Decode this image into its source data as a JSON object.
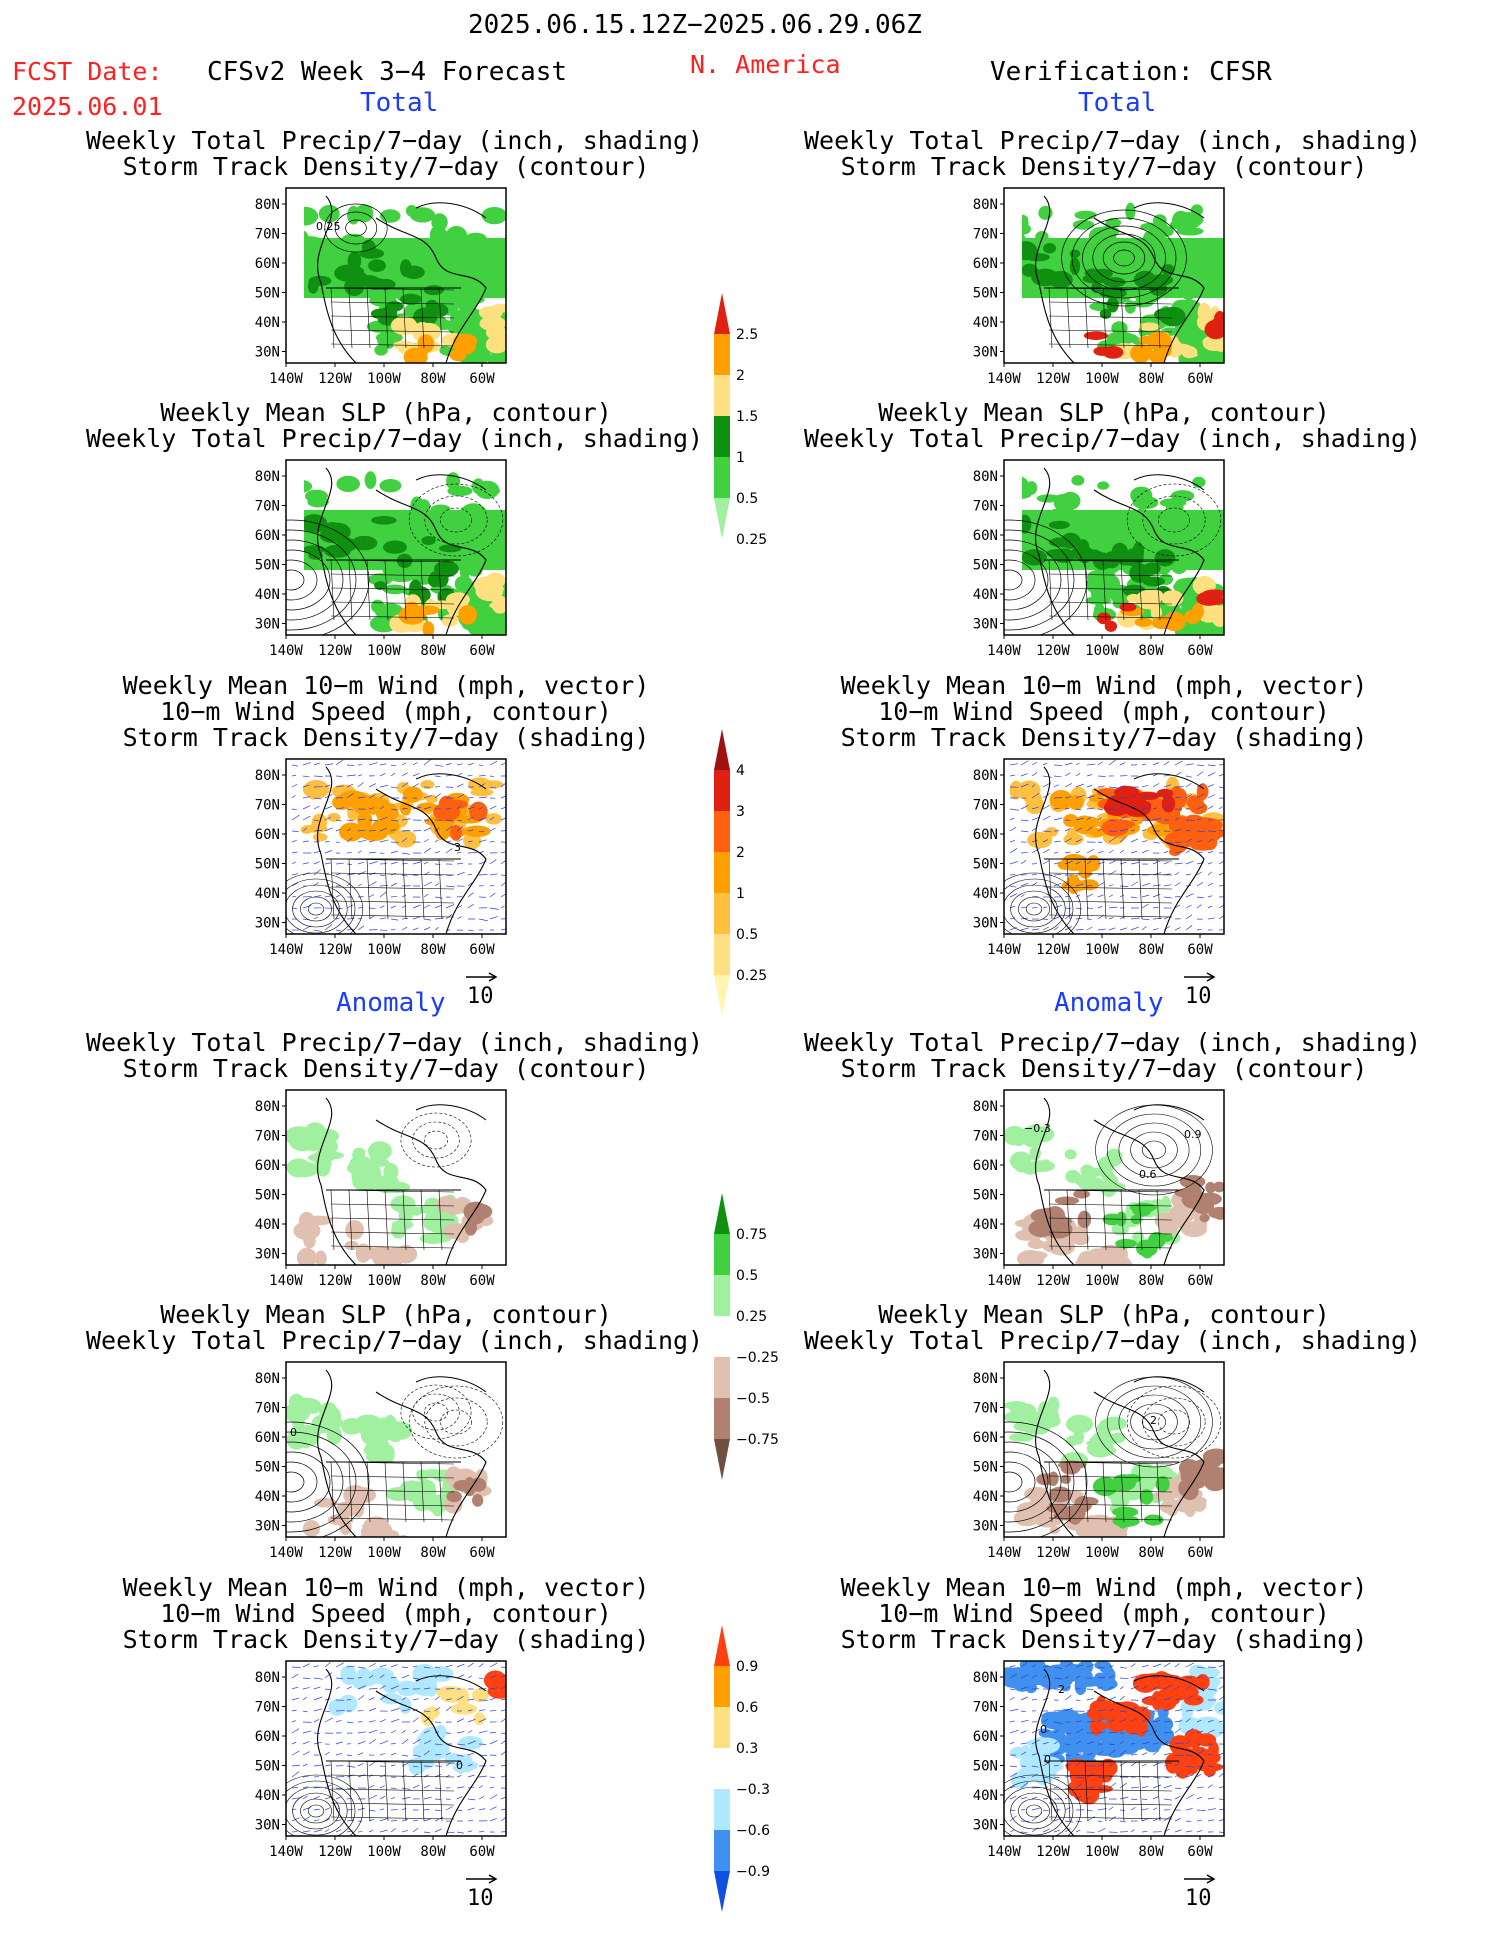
{
  "header": {
    "date_range": "2025.06.15.12Z−2025.06.29.06Z",
    "fcst_label": "FCST Date:",
    "fcst_date": "2025.06.01",
    "model": "CFSv2 Week 3−4 Forecast",
    "region": "N. America",
    "verification": "Verification: CFSR"
  },
  "sections": {
    "total": "Total",
    "anomaly": "Anomaly"
  },
  "panel_titles": {
    "p1": [
      "Weekly Total Precip/7−day (inch, shading)",
      "Storm Track Density/7−day (contour)"
    ],
    "p2": [
      "Weekly Mean SLP (hPa, contour)",
      "Weekly Total Precip/7−day (inch, shading)"
    ],
    "p3": [
      "Weekly Mean 10−m Wind (mph, vector)",
      "10−m Wind Speed (mph, contour)",
      "Storm Track Density/7−day (shading)"
    ]
  },
  "axes": {
    "lat_ticks": [
      "80N",
      "70N",
      "60N",
      "50N",
      "40N",
      "30N"
    ],
    "lon_ticks": [
      "140W",
      "120W",
      "100W",
      "80W",
      "60W"
    ]
  },
  "vector_key": "10",
  "contour_labels": {
    "total_fcst_storm": "0.25",
    "anom_fcst_slp": "0",
    "anom_obs_storm_a": "−0.3",
    "anom_obs_storm_b": "0.9",
    "anom_obs_storm_c": "0.6",
    "anom_obs_slp": "2",
    "anom_obs_wind_a": "2",
    "anom_obs_wind_b": "0",
    "anom_obs_wind_c": "0",
    "anom_fcst_wind": "0",
    "total_fcst_wind": "3"
  },
  "colorbars": {
    "precip_total": {
      "labels": [
        "2.5",
        "2",
        "1.5",
        "1",
        "0.5",
        "0.25"
      ],
      "colors": [
        "#e02010",
        "#ffa000",
        "#ffe080",
        "#109010",
        "#40d040",
        "#a0f0a0"
      ]
    },
    "storm_total": {
      "labels": [
        "4",
        "3",
        "2",
        "1",
        "0.5",
        "0.25"
      ],
      "colors": [
        "#a01010",
        "#e02010",
        "#ff6010",
        "#ffa000",
        "#ffc040",
        "#ffe080",
        "#fff4b0"
      ]
    },
    "precip_anom": {
      "labels": [
        "0.75",
        "0.5",
        "0.25",
        "−0.25",
        "−0.5",
        "−0.75"
      ],
      "colors": [
        "#109010",
        "#40d040",
        "#a0f0a0",
        "#ffffff",
        "#e0c0b0",
        "#b08070",
        "#705040"
      ]
    },
    "storm_anom": {
      "labels": [
        "0.9",
        "0.6",
        "0.3",
        "−0.3",
        "−0.6",
        "−0.9"
      ],
      "colors": [
        "#ff4010",
        "#ffa000",
        "#ffe080",
        "#ffffff",
        "#b0e8ff",
        "#4090f0",
        "#1050e0"
      ]
    }
  }
}
